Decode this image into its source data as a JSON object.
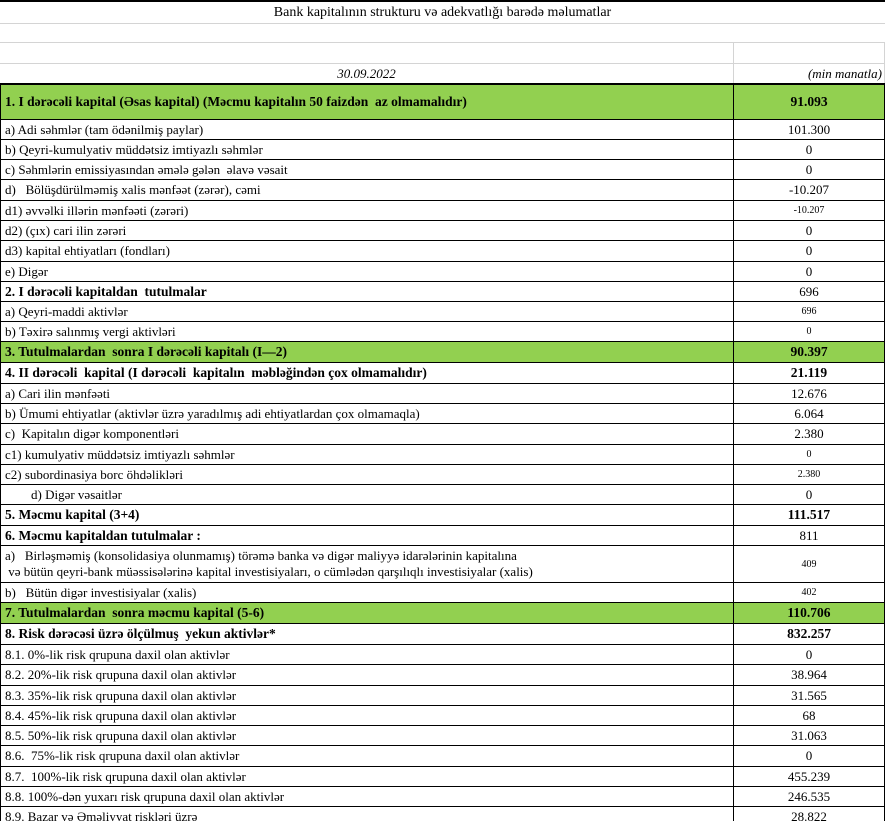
{
  "title": "Bank kapitalının strukturu və adekvatlığı barədə məlumatlar",
  "header": {
    "date": "30.09.2022",
    "unit": "(min manatla)"
  },
  "colors": {
    "highlight_green": "#92D050",
    "grid_black": "#000000",
    "grid_gray": "#d4d4d4"
  },
  "rows": [
    {
      "label": "1. I dərəcəli kapital (Əsas kapital) (Məcmu kapitalın 50 faizdən  az olmamalıdır)",
      "value": "91.093"
    },
    {
      "label": "a) Adi səhmlər (tam ödənilmiş paylar)",
      "value": "101.300"
    },
    {
      "label": "b) Qeyri-kumulyativ müddətsiz imtiyazlı səhmlər",
      "value": "0"
    },
    {
      "label": "c) Səhmlərin emissiyasından əmələ gələn  əlavə vəsait",
      "value": "0"
    },
    {
      "label": "d)   Bölüşdürülməmiş xalis mənfəət (zərər), cəmi",
      "value": "-10.207"
    },
    {
      "label": "d1) əvvəlki illərin mənfəəti (zərəri)",
      "value": "-10.207"
    },
    {
      "label": "d2) (çıx) cari ilin zərəri",
      "value": "0"
    },
    {
      "label": "d3) kapital ehtiyatları (fondları)",
      "value": "0"
    },
    {
      "label": "e) Digər",
      "value": "0"
    },
    {
      "label": "2. I dərəcəli kapitaldan  tutulmalar",
      "value": "696"
    },
    {
      "label": "a) Qeyri-maddi aktivlər",
      "value": "696"
    },
    {
      "label": "b) Təxirə salınmış vergi aktivləri",
      "value": "0"
    },
    {
      "label": "3. Tutulmalardan  sonra I dərəcəli kapitalı (I—2)",
      "value": "90.397"
    },
    {
      "label": "4. II dərəcəli  kapital (I dərəcəli  kapitalın  məbləğindən çox olmamalıdır)",
      "value": "21.119"
    },
    {
      "label": "a) Cari ilin mənfəəti",
      "value": "12.676"
    },
    {
      "label": "b) Ümumi ehtiyatlar (aktivlər üzrə yaradılmış adi ehtiyatlardan çox olmamaqla)",
      "value": "6.064"
    },
    {
      "label": "c)  Kapitalın digər komponentləri",
      "value": "2.380"
    },
    {
      "label": "c1) kumulyativ müddətsiz imtiyazlı səhmlər",
      "value": "0"
    },
    {
      "label": "c2) subordinasiya borc öhdəlikləri",
      "value": "2.380"
    },
    {
      "label": "        d) Digər vəsaitlər",
      "value": "0"
    },
    {
      "label": "5. Məcmu kapital (3+4)",
      "value": "111.517"
    },
    {
      "label": "6. Məcmu kapitaldan tutulmalar :",
      "value": "811"
    },
    {
      "label": "a)   Birləşməmiş (konsolidasiya olunmamış) törəmə banka və digər maliyyə idarələrinin kapitalına\n və bütün qeyri-bank müəssisələrinə kapital investisiyaları, o cümlədən qarşılıqlı investisiyalar (xalis)",
      "value": "409"
    },
    {
      "label": "b)   Bütün digər investisiyalar (xalis)",
      "value": "402"
    },
    {
      "label": "7. Tutulmalardan  sonra məcmu kapital (5-6)",
      "value": "110.706"
    },
    {
      "label": "8. Risk dərəcəsi üzrə ölçülmuş  yekun aktivlər*",
      "value": "832.257"
    },
    {
      "label": "8.1. 0%-lik risk qrupuna daxil olan aktivlər",
      "value": "0"
    },
    {
      "label": "8.2. 20%-lik risk qrupuna daxil olan aktivlər",
      "value": "38.964"
    },
    {
      "label": "8.3. 35%-lik risk qrupuna daxil olan aktivlər",
      "value": "31.565"
    },
    {
      "label": "8.4. 45%-lik risk qrupuna daxil olan aktivlər",
      "value": "68"
    },
    {
      "label": "8.5. 50%-lik risk qrupuna daxil olan aktivlər",
      "value": "31.063"
    },
    {
      "label": "8.6.  75%-lik risk qrupuna daxil olan aktivlər",
      "value": "0"
    },
    {
      "label": "8.7.  100%-lik risk qrupuna daxil olan aktivlər",
      "value": "455.239"
    },
    {
      "label": "8.8. 100%-dən yuxarı risk qrupuna daxil olan aktivlər",
      "value": "246.535"
    },
    {
      "label": "8.9. Bazar və Əməliyyat riskləri üzrə",
      "value": "28.822"
    }
  ]
}
